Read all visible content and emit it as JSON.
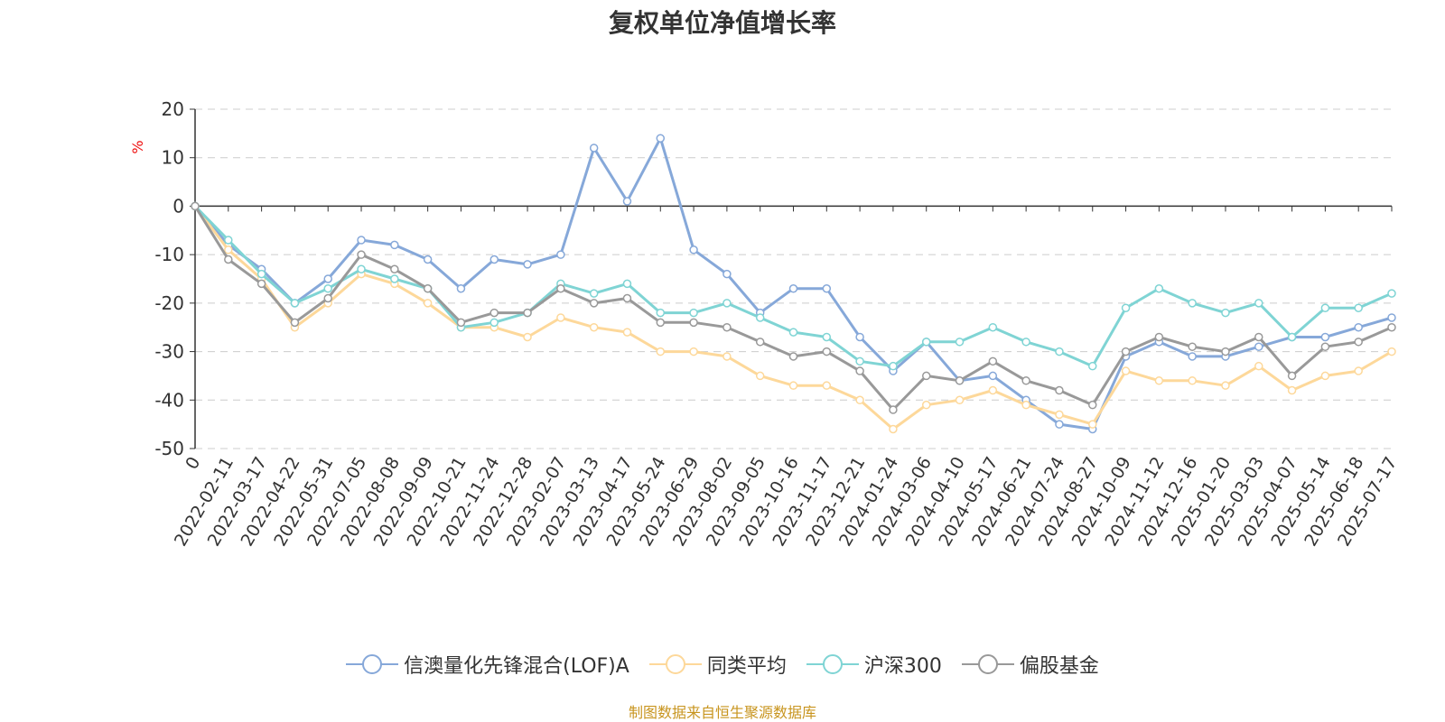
{
  "chart_data": {
    "type": "line",
    "title": "复权单位净值增长率",
    "ylabel": "%",
    "ylim": [
      -50,
      20
    ],
    "yticks": [
      20,
      10,
      0,
      -10,
      -20,
      -30,
      -40,
      -50
    ],
    "grid": true,
    "legend_position": "bottom",
    "x_tick_labels": [
      "0",
      "2022-02-11",
      "2022-03-17",
      "2022-04-22",
      "2022-05-31",
      "2022-07-05",
      "2022-08-08",
      "2022-09-09",
      "2022-10-21",
      "2022-11-24",
      "2022-12-28",
      "2023-02-07",
      "2023-03-13",
      "2023-04-17",
      "2023-05-24",
      "2023-06-29",
      "2023-08-02",
      "2023-09-05",
      "2023-10-16",
      "2023-11-17",
      "2023-12-21",
      "2024-01-24",
      "2024-03-06",
      "2024-04-10",
      "2024-05-17",
      "2024-06-21",
      "2024-07-24",
      "2024-08-27",
      "2024-10-09",
      "2024-11-12",
      "2024-12-16",
      "2025-01-20",
      "2025-03-03",
      "2025-04-07",
      "2025-05-14",
      "2025-06-18",
      "2025-07-17"
    ],
    "series": [
      {
        "name": "信澳量化先锋混合(LOF)A",
        "color": "#86a8d9",
        "values": [
          0,
          -8,
          -13,
          -20,
          -15,
          -7,
          -8,
          -11,
          -17,
          -11,
          -12,
          -10,
          12,
          1,
          14,
          -9,
          -14,
          -22,
          -17,
          -17,
          -27,
          -34,
          -28,
          -36,
          -35,
          -40,
          -45,
          -46,
          -31,
          -28,
          -31,
          -31,
          -29,
          -27,
          -27,
          -25,
          -23
        ]
      },
      {
        "name": "同类平均",
        "color": "#fdd89a",
        "values": [
          0,
          -9,
          -15,
          -25,
          -20,
          -14,
          -16,
          -20,
          -25,
          -25,
          -27,
          -23,
          -25,
          -26,
          -30,
          -30,
          -31,
          -35,
          -37,
          -37,
          -40,
          -46,
          -41,
          -40,
          -38,
          -41,
          -43,
          -45,
          -34,
          -36,
          -36,
          -37,
          -33,
          -38,
          -35,
          -34,
          -30
        ]
      },
      {
        "name": "沪深300",
        "color": "#7fd4d4",
        "values": [
          0,
          -7,
          -14,
          -20,
          -17,
          -13,
          -15,
          -17,
          -25,
          -24,
          -22,
          -16,
          -18,
          -16,
          -22,
          -22,
          -20,
          -23,
          -26,
          -27,
          -32,
          -33,
          -28,
          -28,
          -25,
          -28,
          -30,
          -33,
          -21,
          -17,
          -20,
          -22,
          -20,
          -27,
          -21,
          -21,
          -18
        ]
      },
      {
        "name": "偏股基金",
        "color": "#999999",
        "values": [
          0,
          -11,
          -16,
          -24,
          -19,
          -10,
          -13,
          -17,
          -24,
          -22,
          -22,
          -17,
          -20,
          -19,
          -24,
          -24,
          -25,
          -28,
          -31,
          -30,
          -34,
          -42,
          -35,
          -36,
          -32,
          -36,
          -38,
          -41,
          -30,
          -27,
          -29,
          -30,
          -27,
          -35,
          -29,
          -28,
          -25
        ]
      }
    ]
  },
  "source_note": "制图数据来自恒生聚源数据库"
}
